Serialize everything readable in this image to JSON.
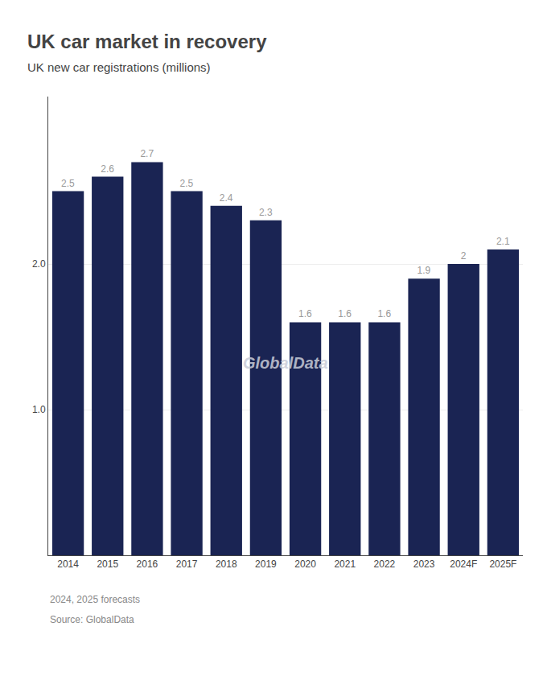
{
  "chart_data": {
    "type": "bar",
    "title": "UK car market in recovery",
    "subtitle": "UK new car registrations (millions)",
    "categories": [
      "2014",
      "2015",
      "2016",
      "2017",
      "2018",
      "2019",
      "2020",
      "2021",
      "2022",
      "2023",
      "2024F",
      "2025F"
    ],
    "values": [
      2.5,
      2.6,
      2.7,
      2.5,
      2.4,
      2.3,
      1.6,
      1.6,
      1.6,
      1.9,
      2.0,
      2.1
    ],
    "color": "#1a2453",
    "data_labels": true,
    "ylim": [
      0,
      3.15
    ],
    "yticks": [
      {
        "value": 1.0,
        "label": "1.0"
      },
      {
        "value": 2.0,
        "label": "2.0"
      }
    ],
    "grid": true,
    "annotations": [
      "GlobalData",
      "2024, 2025 forecasts",
      "Source: GlobalData"
    ]
  }
}
